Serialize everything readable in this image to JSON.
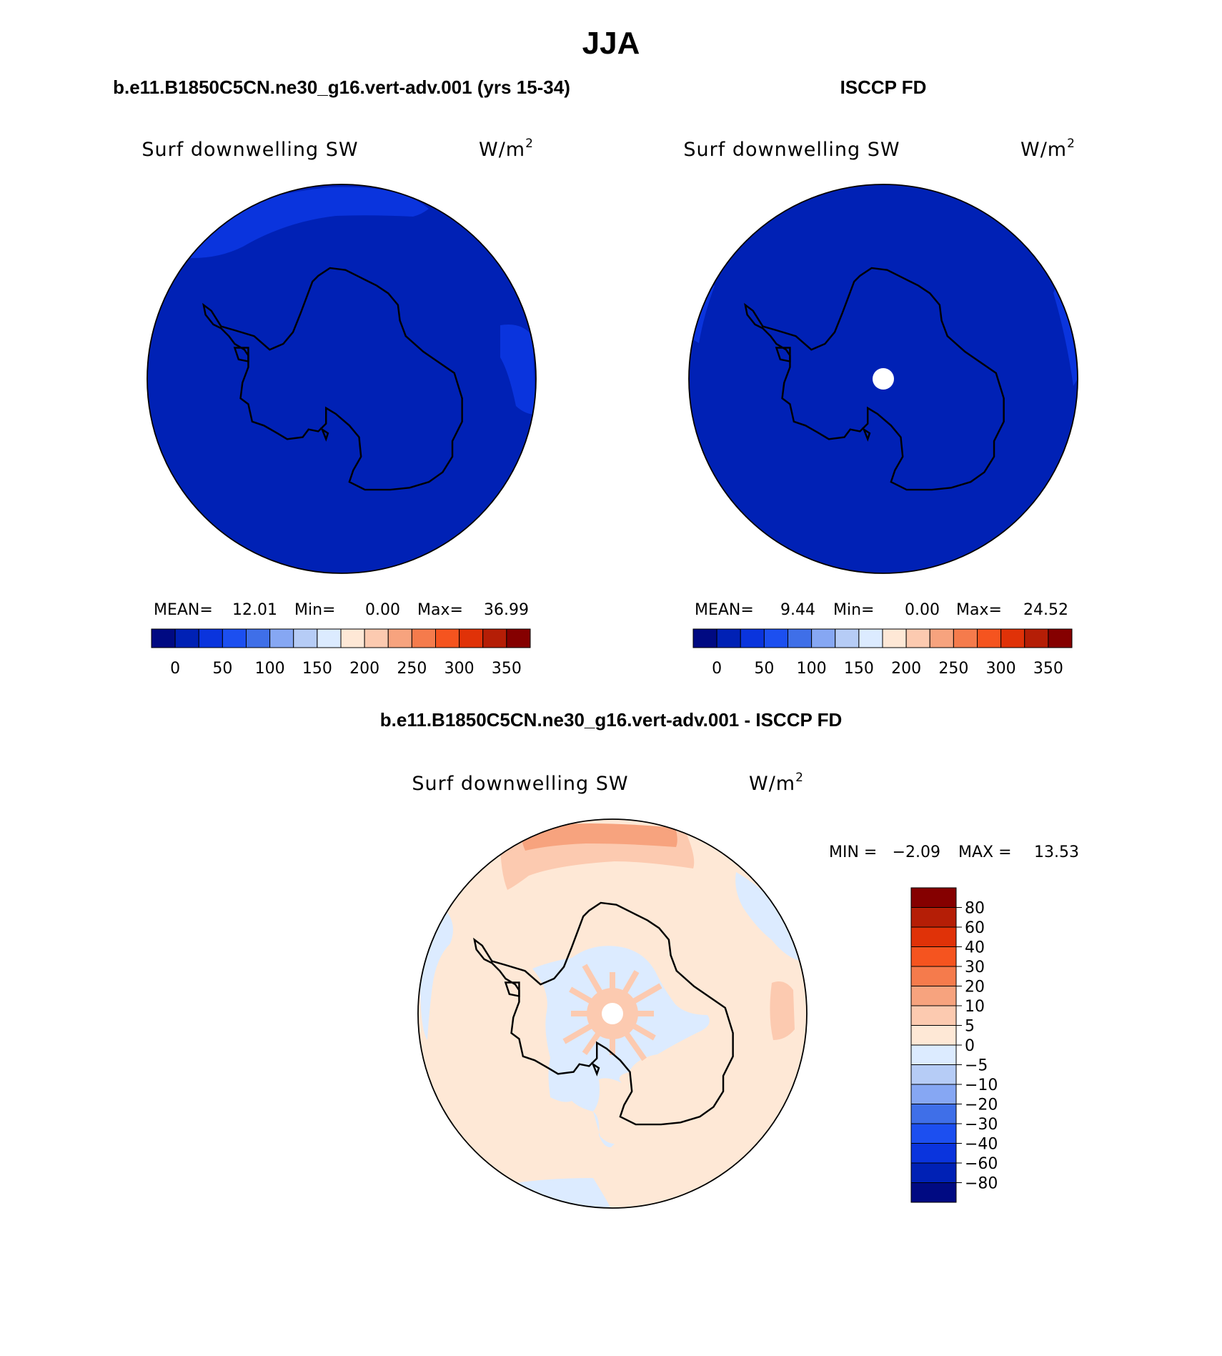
{
  "figure": {
    "season": "JJA",
    "colors": {
      "land_outline": "#000000",
      "background": "#ffffff"
    }
  },
  "panels": [
    {
      "title": "b.e11.B1850C5CN.ne30_g16.vert-adv.001 (yrs 15-34)",
      "variable": "Surf downwelling SW",
      "units_base": "W/m",
      "units_sup": "2",
      "stats": {
        "mean_label": "MEAN=",
        "mean": "12.01",
        "min_label": "Min=",
        "min": "0.00",
        "max_label": "Max=",
        "max": "36.99"
      },
      "field": {
        "base_color": "#0021b5",
        "patches": [
          {
            "desc": "Pacific-sector band north of ice",
            "color": "#0a34dd"
          },
          {
            "desc": "Indian-sector eastern patch",
            "color": "#0a34dd"
          }
        ]
      },
      "has_pole_hole": false
    },
    {
      "title": "ISCCP FD",
      "variable": "Surf downwelling SW",
      "units_base": "W/m",
      "units_sup": "2",
      "stats": {
        "mean_label": "MEAN=",
        "mean": "9.44",
        "min_label": "Min=",
        "min": "0.00",
        "max_label": "Max=",
        "max": "24.52"
      },
      "field": {
        "base_color": "#0021b5",
        "patches": [
          {
            "desc": "western rim",
            "color": "#0a34dd"
          },
          {
            "desc": "eastern rim",
            "color": "#0a34dd"
          }
        ]
      },
      "has_pole_hole": true
    }
  ],
  "abs_colorbar": {
    "colors": [
      "#000a82",
      "#0021b5",
      "#0a34dd",
      "#1c4ff0",
      "#3f6fe8",
      "#86a7f3",
      "#b6ccf6",
      "#dcebff",
      "#fee8d6",
      "#fccab0",
      "#f7a37e",
      "#f57b4c",
      "#f5541f",
      "#e03208",
      "#b51e06",
      "#850000"
    ],
    "ticks": [
      "0",
      "50",
      "100",
      "150",
      "200",
      "250",
      "300",
      "350"
    ]
  },
  "diff_panel": {
    "title": "b.e11.B1850C5CN.ne30_g16.vert-adv.001 - ISCCP FD",
    "variable": "Surf downwelling SW",
    "units_base": "W/m",
    "units_sup": "2",
    "minmax": {
      "min_label": "MIN =",
      "min": "−2.09",
      "max_label": "MAX =",
      "max": "13.53"
    },
    "field": {
      "base_color": "#fee8d6",
      "patches": [
        {
          "desc": "Pacific sector band 10-20",
          "color": "#f7a37e"
        },
        {
          "desc": "band below it 5-10",
          "color": "#fccab0"
        },
        {
          "desc": "Indian sector patch 5-10",
          "color": "#fccab0"
        },
        {
          "desc": "interior plateau negative",
          "color": "#dcebff"
        },
        {
          "desc": "rim patches negative",
          "color": "#dcebff"
        }
      ]
    }
  },
  "diff_colorbar": {
    "colors": [
      "#000a82",
      "#0021b5",
      "#0a34dd",
      "#1c4ff0",
      "#3f6fe8",
      "#86a7f3",
      "#b6ccf6",
      "#dcebff",
      "#fee8d6",
      "#fccab0",
      "#f7a37e",
      "#f57b4c",
      "#f5541f",
      "#e03208",
      "#b51e06",
      "#850000"
    ],
    "ticks": [
      "−80",
      "−60",
      "−40",
      "−30",
      "−20",
      "−10",
      "−5",
      "0",
      "5",
      "10",
      "20",
      "30",
      "40",
      "60",
      "80"
    ]
  }
}
